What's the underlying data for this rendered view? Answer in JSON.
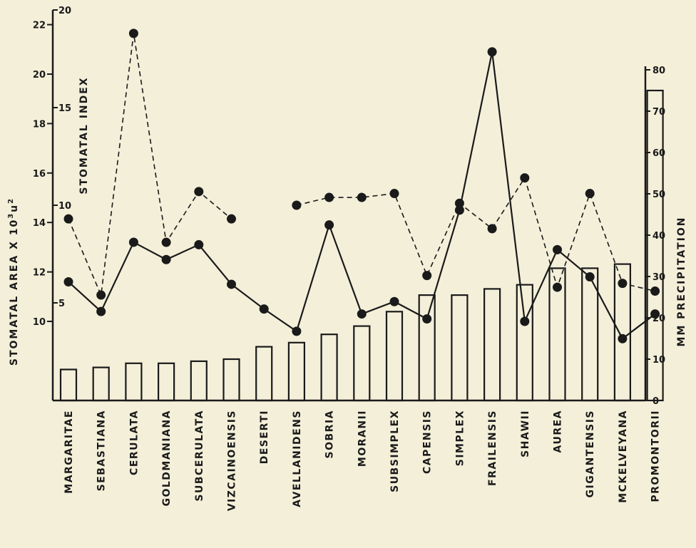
{
  "chart_data": {
    "type": "bar",
    "categories": [
      "MARGARITAE",
      "SEBASTIANA",
      "CERULATA",
      "GOLDMANIANA",
      "SUBCERULATA",
      "VIZCAINOENSIS",
      "DESERTI",
      "AVELLANIDENS",
      "SOBRIA",
      "MORANII",
      "SUBSIMPLEX",
      "CAPENSIS",
      "SIMPLEX",
      "FRAILENSIS",
      "SHAWII",
      "AUREA",
      "GIGANTENSIS",
      "MCKELVEYANA",
      "PROMONTORII"
    ],
    "axes": {
      "stomatal_area": {
        "label": "STOMATAL AREA  X 10",
        "label_sup": "3",
        "label_unit": "u",
        "label_unit_sup": "2",
        "ticks": [
          10,
          12,
          14,
          16,
          18,
          20,
          22
        ]
      },
      "stomatal_index": {
        "label": "STOMATAL INDEX",
        "ticks": [
          5,
          10,
          15,
          20
        ]
      },
      "precipitation": {
        "label": "MM  PRECIPITATION",
        "ticks": [
          0,
          10,
          20,
          30,
          40,
          50,
          60,
          70,
          80
        ]
      }
    },
    "series": [
      {
        "key": "precipitation",
        "style": "bars",
        "values": [
          7.5,
          8,
          9,
          9,
          9.5,
          10,
          13,
          14,
          16,
          18,
          21.5,
          25.5,
          25.5,
          27,
          28,
          32,
          32,
          33,
          75
        ]
      },
      {
        "key": "stomatal_area",
        "style": "solid-line",
        "values": [
          11.6,
          10.4,
          13.2,
          12.5,
          13.1,
          11.5,
          10.5,
          9.6,
          13.9,
          10.3,
          10.8,
          10.1,
          14.5,
          20.9,
          10.0,
          12.9,
          11.8,
          9.3,
          10.3
        ]
      },
      {
        "key": "stomatal_index",
        "style": "dashed-line",
        "values": [
          9.3,
          5.4,
          18.8,
          8.1,
          10.7,
          9.3,
          null,
          10.0,
          10.4,
          10.4,
          10.6,
          6.4,
          10.1,
          8.8,
          11.4,
          5.8,
          10.6,
          6.0,
          5.6
        ]
      }
    ],
    "ylim_area": [
      6.5,
      22.5
    ],
    "ylim_index": [
      0,
      20
    ],
    "ylim_precip": [
      0,
      87
    ]
  }
}
